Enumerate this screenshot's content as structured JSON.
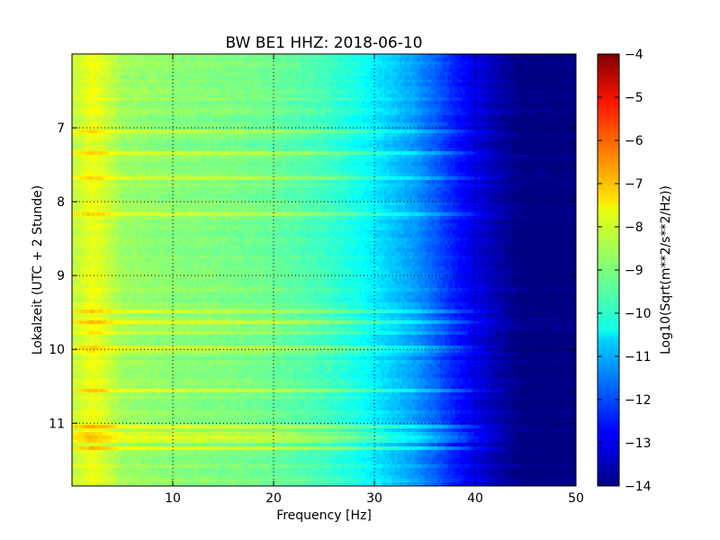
{
  "chart_data": {
    "type": "heatmap",
    "title": "BW BE1 HHZ: 2018-06-10",
    "xlabel": "Frequency [Hz]",
    "ylabel": "Lokalzeit (UTC + 2 Stunde)",
    "colorbar_label": "Log10(Sqrt(m**2/s**2/Hz))",
    "xlim": [
      0,
      50
    ],
    "ylim": [
      11.85,
      6.0
    ],
    "y_inverted": true,
    "x_ticks": [
      10,
      20,
      30,
      40,
      50
    ],
    "x_tick_labels": [
      "10",
      "20",
      "30",
      "40",
      "50"
    ],
    "y_ticks": [
      7,
      8,
      9,
      10,
      11
    ],
    "y_tick_labels": [
      "7",
      "8",
      "9",
      "10",
      "11"
    ],
    "grid": true,
    "colormap": "jet",
    "colorbar_range": [
      -14,
      -4
    ],
    "colorbar_ticks": [
      -4,
      -5,
      -6,
      -7,
      -8,
      -9,
      -10,
      -11,
      -12,
      -13,
      -14
    ],
    "colorbar_tick_labels": [
      "−4",
      "−5",
      "−6",
      "−7",
      "−8",
      "−9",
      "−10",
      "−11",
      "−12",
      "−13",
      "−14"
    ],
    "spectral_profile": {
      "frequency_hz": [
        0.5,
        2,
        3,
        5,
        10,
        15,
        20,
        25,
        28,
        30,
        32,
        34,
        36,
        38,
        40,
        42,
        44,
        45,
        50
      ],
      "log10_amplitude": [
        -8.3,
        -7.9,
        -8.1,
        -8.7,
        -8.9,
        -9.0,
        -9.2,
        -9.6,
        -10.0,
        -10.4,
        -10.8,
        -11.2,
        -11.8,
        -12.5,
        -13.0,
        -13.5,
        -13.9,
        -14.0,
        -14.0
      ]
    }
  }
}
